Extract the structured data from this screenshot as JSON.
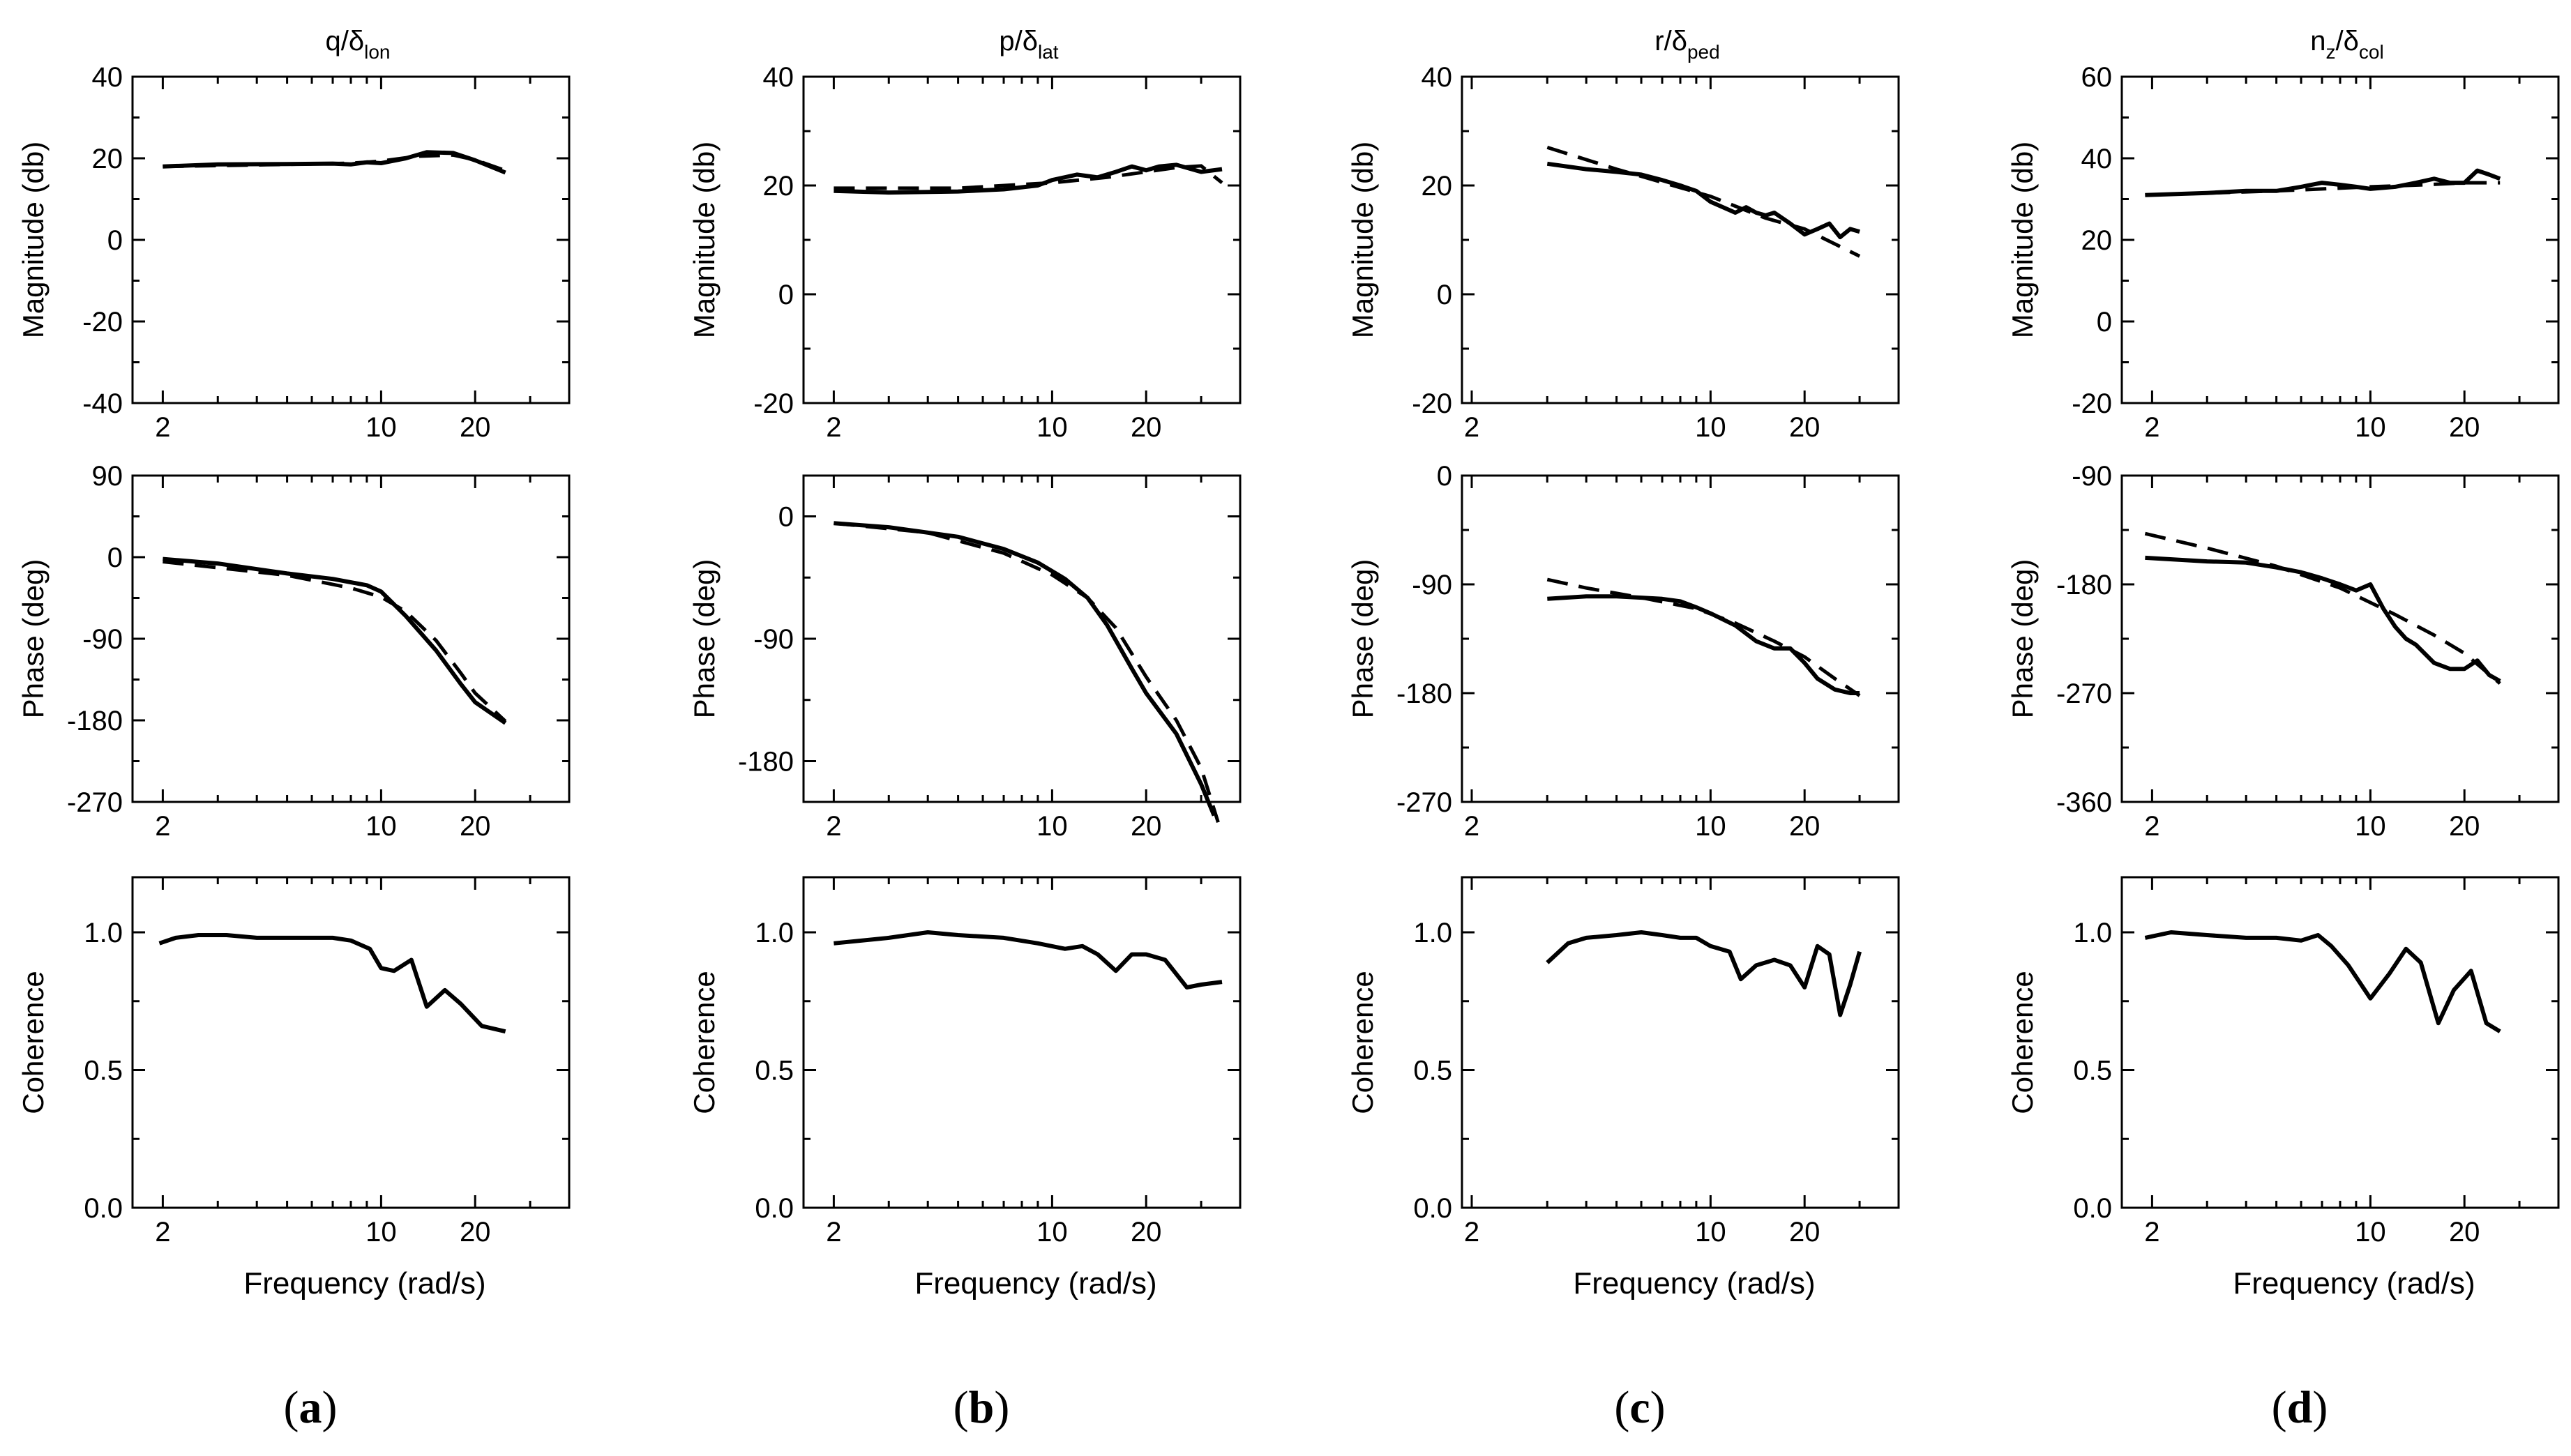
{
  "chart_data": [
    {
      "type": "line",
      "panel": "a",
      "caption": "(a)",
      "title_main": "q/δ",
      "title_sub": "lon",
      "x_tick_labels": [
        "2",
        "10",
        "20"
      ],
      "xlabel": "Frequency (rad/s)",
      "magnitude": {
        "ylabel": "Magnitude (db)",
        "ylim": [
          -40,
          40
        ],
        "y_tick_labels": [
          "40",
          "20",
          "0",
          "-20",
          "-40"
        ],
        "measured": {
          "x": [
            2,
            3,
            5,
            7,
            8,
            9,
            10,
            12,
            14,
            17,
            20,
            25
          ],
          "y": [
            18,
            18.5,
            18.6,
            18.7,
            18.5,
            19,
            18.8,
            20,
            21.5,
            21.3,
            19.5,
            16.5
          ]
        },
        "model": {
          "x": [
            2,
            5,
            8,
            10,
            13,
            17,
            20,
            25
          ],
          "y": [
            18,
            18.5,
            18.8,
            19.3,
            20.5,
            20.8,
            19.6,
            17
          ]
        }
      },
      "phase": {
        "ylabel": "Phase (deg)",
        "ylim": [
          -270,
          90
        ],
        "y_tick_labels": [
          "90",
          "0",
          "-90",
          "-180",
          "-270"
        ],
        "measured": {
          "x": [
            2,
            3,
            5,
            7,
            9,
            10,
            12,
            15,
            18,
            20,
            25
          ],
          "y": [
            -2,
            -7,
            -18,
            -24,
            -31,
            -38,
            -65,
            -103,
            -140,
            -160,
            -183
          ]
        },
        "model": {
          "x": [
            2,
            5,
            8,
            10,
            12,
            15,
            18,
            20,
            25
          ],
          "y": [
            -5,
            -20,
            -34,
            -44,
            -60,
            -92,
            -128,
            -150,
            -181
          ]
        }
      },
      "coherence": {
        "ylabel": "Coherence",
        "ylim": [
          0,
          1.2
        ],
        "y_tick_labels": [
          "1.0",
          "0.5",
          "0.0"
        ],
        "x": [
          1.95,
          2.2,
          2.6,
          3.2,
          4,
          5,
          6,
          7,
          8,
          9.2,
          10,
          11,
          12.5,
          14,
          16,
          18,
          21,
          25
        ],
        "y": [
          0.96,
          0.98,
          0.99,
          0.99,
          0.98,
          0.98,
          0.98,
          0.98,
          0.97,
          0.94,
          0.87,
          0.86,
          0.9,
          0.73,
          0.79,
          0.74,
          0.66,
          0.64
        ]
      }
    },
    {
      "type": "line",
      "panel": "b",
      "caption": "(b)",
      "title_main": "p/δ",
      "title_sub": "lat",
      "x_tick_labels": [
        "2",
        "10",
        "20"
      ],
      "xlabel": "Frequency (rad/s)",
      "magnitude": {
        "ylabel": "Magnitude (db)",
        "ylim": [
          -20,
          40
        ],
        "y_tick_labels": [
          "40",
          "20",
          "0",
          "-20"
        ],
        "measured": {
          "x": [
            2,
            3,
            5,
            7,
            9,
            10,
            12,
            14,
            16,
            18,
            20,
            22,
            25,
            30,
            35
          ],
          "y": [
            19,
            18.7,
            18.9,
            19.3,
            20,
            21,
            22,
            21.5,
            22.5,
            23.5,
            22.8,
            23.5,
            23.8,
            22.5,
            23
          ]
        },
        "model": {
          "x": [
            2,
            5,
            10,
            15,
            20,
            25,
            30,
            35
          ],
          "y": [
            19.5,
            19.5,
            20.5,
            21.5,
            22.5,
            23.3,
            23.6,
            20.5
          ]
        }
      },
      "phase": {
        "ylabel": "Phase (deg)",
        "ylim": [
          -210,
          30
        ],
        "y_tick_labels": [
          "0",
          "-90",
          "-180"
        ],
        "measured": {
          "x": [
            2,
            3,
            5,
            7,
            9,
            11,
            13,
            15,
            18,
            20,
            25,
            30,
            33
          ],
          "y": [
            -5,
            -8,
            -15,
            -24,
            -34,
            -46,
            -60,
            -80,
            -112,
            -130,
            -160,
            -197,
            -220
          ]
        },
        "model": {
          "x": [
            2,
            4,
            7,
            10,
            13,
            16,
            20,
            25,
            30,
            34
          ],
          "y": [
            -5,
            -12,
            -27,
            -43,
            -60,
            -82,
            -118,
            -150,
            -185,
            -225
          ]
        }
      },
      "coherence": {
        "ylabel": "Coherence",
        "ylim": [
          0,
          1.2
        ],
        "y_tick_labels": [
          "1.0",
          "0.5",
          "0.0"
        ],
        "x": [
          2,
          3,
          4,
          5,
          7,
          9,
          11,
          12.5,
          14,
          16,
          18,
          20,
          23,
          27,
          30,
          35
        ],
        "y": [
          0.96,
          0.98,
          1.0,
          0.99,
          0.98,
          0.96,
          0.94,
          0.95,
          0.92,
          0.86,
          0.92,
          0.92,
          0.9,
          0.8,
          0.81,
          0.82
        ]
      }
    },
    {
      "type": "line",
      "panel": "c",
      "caption": "(c)",
      "title_main": "r/δ",
      "title_sub": "ped",
      "x_tick_labels": [
        "2",
        "10",
        "20"
      ],
      "xlabel": "Frequency (rad/s)",
      "magnitude": {
        "ylabel": "Magnitude (db)",
        "ylim": [
          -20,
          40
        ],
        "y_tick_labels": [
          "40",
          "20",
          "0",
          "-20"
        ],
        "measured": {
          "x": [
            3,
            4,
            5,
            6,
            7,
            8,
            9,
            10,
            12,
            13,
            14,
            15,
            16,
            18,
            20,
            22,
            24,
            26,
            28,
            30
          ],
          "y": [
            24,
            23,
            22.5,
            22,
            21,
            20,
            19,
            17,
            15,
            16,
            15,
            14.5,
            15,
            13,
            11,
            12,
            13,
            10.5,
            12,
            11.5
          ]
        },
        "model": {
          "x": [
            3,
            5,
            10,
            15,
            20,
            30
          ],
          "y": [
            27,
            23,
            18,
            14,
            12,
            7
          ]
        }
      },
      "phase": {
        "ylabel": "Phase (deg)",
        "ylim": [
          -270,
          0
        ],
        "y_tick_labels": [
          "0",
          "-90",
          "-180",
          "-270"
        ],
        "measured": {
          "x": [
            3,
            4,
            5,
            6,
            7,
            8,
            9,
            10,
            12,
            14,
            16,
            18,
            20,
            22,
            25,
            28,
            30
          ],
          "y": [
            -102,
            -100,
            -100,
            -101,
            -102,
            -104,
            -109,
            -114,
            -124,
            -137,
            -143,
            -143,
            -155,
            -168,
            -177,
            -180,
            -180
          ]
        },
        "model": {
          "x": [
            3,
            4,
            6,
            9,
            12,
            16,
            20,
            25,
            30
          ],
          "y": [
            -86,
            -93,
            -101,
            -110,
            -122,
            -137,
            -150,
            -168,
            -182
          ]
        }
      },
      "coherence": {
        "ylabel": "Coherence",
        "ylim": [
          0,
          1.2
        ],
        "y_tick_labels": [
          "1.0",
          "0.5",
          "0.0"
        ],
        "x": [
          3,
          3.5,
          4,
          5,
          6,
          7,
          8,
          9,
          10,
          11.5,
          12.5,
          14,
          16,
          18,
          20,
          22,
          24,
          26,
          28,
          30
        ],
        "y": [
          0.89,
          0.96,
          0.98,
          0.99,
          1.0,
          0.99,
          0.98,
          0.98,
          0.95,
          0.93,
          0.83,
          0.88,
          0.9,
          0.88,
          0.8,
          0.95,
          0.92,
          0.7,
          0.81,
          0.93
        ]
      }
    },
    {
      "type": "line",
      "panel": "d",
      "caption": "(d)",
      "title_main": "n",
      "title_submain": "z",
      "title_after": "/δ",
      "title_sub": "col",
      "x_tick_labels": [
        "2",
        "10",
        "20"
      ],
      "xlabel": "Frequency (rad/s)",
      "magnitude": {
        "ylabel": "Magnitude (db)",
        "ylim": [
          -20,
          60
        ],
        "y_tick_labels": [
          "60",
          "40",
          "20",
          "0",
          "-20"
        ],
        "measured": {
          "x": [
            1.9,
            3,
            4,
            5,
            6,
            7,
            8,
            9,
            10,
            12,
            14,
            16,
            18,
            20,
            22,
            24,
            26
          ],
          "y": [
            31,
            31.5,
            32,
            32,
            33,
            34,
            33.5,
            33,
            32.5,
            33,
            34,
            35,
            34,
            34,
            37,
            36,
            35
          ]
        },
        "model": {
          "x": [
            1.9,
            5,
            10,
            15,
            20,
            26
          ],
          "y": [
            31,
            32,
            33,
            33.5,
            34,
            34
          ]
        }
      },
      "phase": {
        "ylabel": "Phase (deg)",
        "ylim": [
          -360,
          -90
        ],
        "y_tick_labels": [
          "-90",
          "-180",
          "-270",
          "-360"
        ],
        "measured": {
          "x": [
            1.9,
            3,
            4,
            5,
            6,
            7,
            8,
            9,
            10,
            11,
            12,
            13,
            14,
            16,
            18,
            20,
            22,
            24,
            26
          ],
          "y": [
            -158,
            -161,
            -162,
            -166,
            -170,
            -175,
            -180,
            -185,
            -180,
            -200,
            -215,
            -225,
            -230,
            -245,
            -250,
            -250,
            -243,
            -255,
            -260
          ]
        },
        "model": {
          "x": [
            1.9,
            3,
            5,
            8,
            12,
            16,
            20,
            26
          ],
          "y": [
            -138,
            -150,
            -165,
            -183,
            -205,
            -222,
            -237,
            -262
          ]
        }
      },
      "coherence": {
        "ylabel": "Coherence",
        "ylim": [
          0,
          1.2
        ],
        "y_tick_labels": [
          "1.0",
          "0.5",
          "0.0"
        ],
        "x": [
          1.9,
          2.3,
          3,
          4,
          5,
          6,
          6.8,
          7.5,
          8.5,
          10,
          11.5,
          13,
          14.5,
          16.5,
          18.5,
          21,
          23.5,
          26
        ],
        "y": [
          0.98,
          1.0,
          0.99,
          0.98,
          0.98,
          0.97,
          0.99,
          0.95,
          0.88,
          0.76,
          0.85,
          0.94,
          0.89,
          0.67,
          0.79,
          0.86,
          0.67,
          0.64
        ]
      }
    }
  ]
}
